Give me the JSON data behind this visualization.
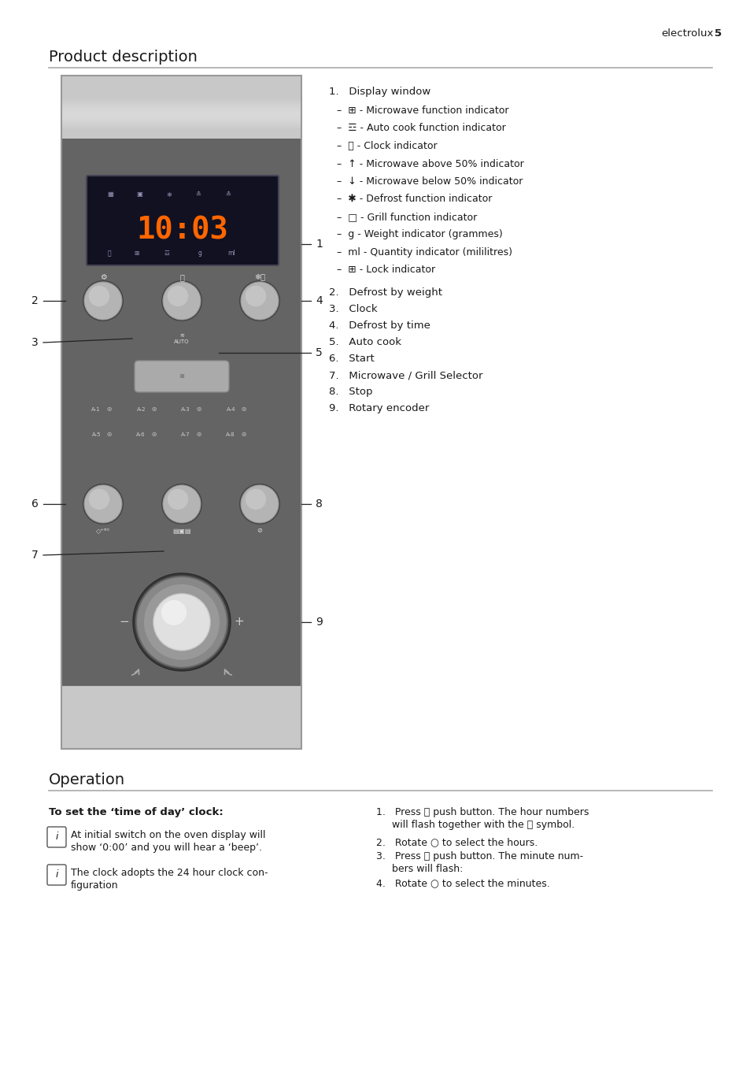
{
  "page_header": "electrolux",
  "page_num": "5",
  "section1_title": "Product description",
  "section2_title": "Operation",
  "section2_subtitle": "To set the ‘time of day’ clock:",
  "display_time": "10:03",
  "right_list_title": "1.   Display window",
  "sub_items": [
    "–  ⊞ - Microwave function indicator",
    "–  ☲ - Auto cook function indicator",
    "–  ⓨ - Clock indicator",
    "–  ↑ - Microwave above 50% indicator",
    "–  ↓ - Microwave below 50% indicator",
    "–  ✱ - Defrost function indicator",
    "–  □ - Grill function indicator",
    "–  g - Weight indicator (grammes)",
    "–  ml - Quantity indicator (mililitres)",
    "–  ⊞ - Lock indicator"
  ],
  "numbered_items": [
    "2.   Defrost by weight",
    "3.   Clock",
    "4.   Defrost by time",
    "5.   Auto cook",
    "6.   Start",
    "7.   Microwave / Grill Selector",
    "8.   Stop",
    "9.   Rotary encoder"
  ],
  "info1": "At initial switch on the oven display will\nshow ‘0:00’ and you will hear a ‘beep’.",
  "info2": "The clock adopts the 24 hour clock con-\nfiguration",
  "op_step1a": "1.   Press ⓨ push button. The hour numbers",
  "op_step1b": "     will flash together with the ⓨ symbol.",
  "op_step2": "2.   Rotate ○ to select the hours.",
  "op_step3a": "3.   Press ⓨ push button. The minute num-",
  "op_step3b": "     bers will flash:",
  "op_step4": "4.   Rotate ○ to select the minutes.",
  "bg_color": "#ffffff",
  "panel_color": "#646464",
  "display_bg": "#111122",
  "display_fg": "#ff6600",
  "silver": "#c8c8c8",
  "silver_dark": "#a8a8a8",
  "btn_color": "#b4b4b4",
  "btn_light": "#d0d0d0",
  "text_color": "#1a1a1a",
  "rule_color": "#aaaaaa"
}
